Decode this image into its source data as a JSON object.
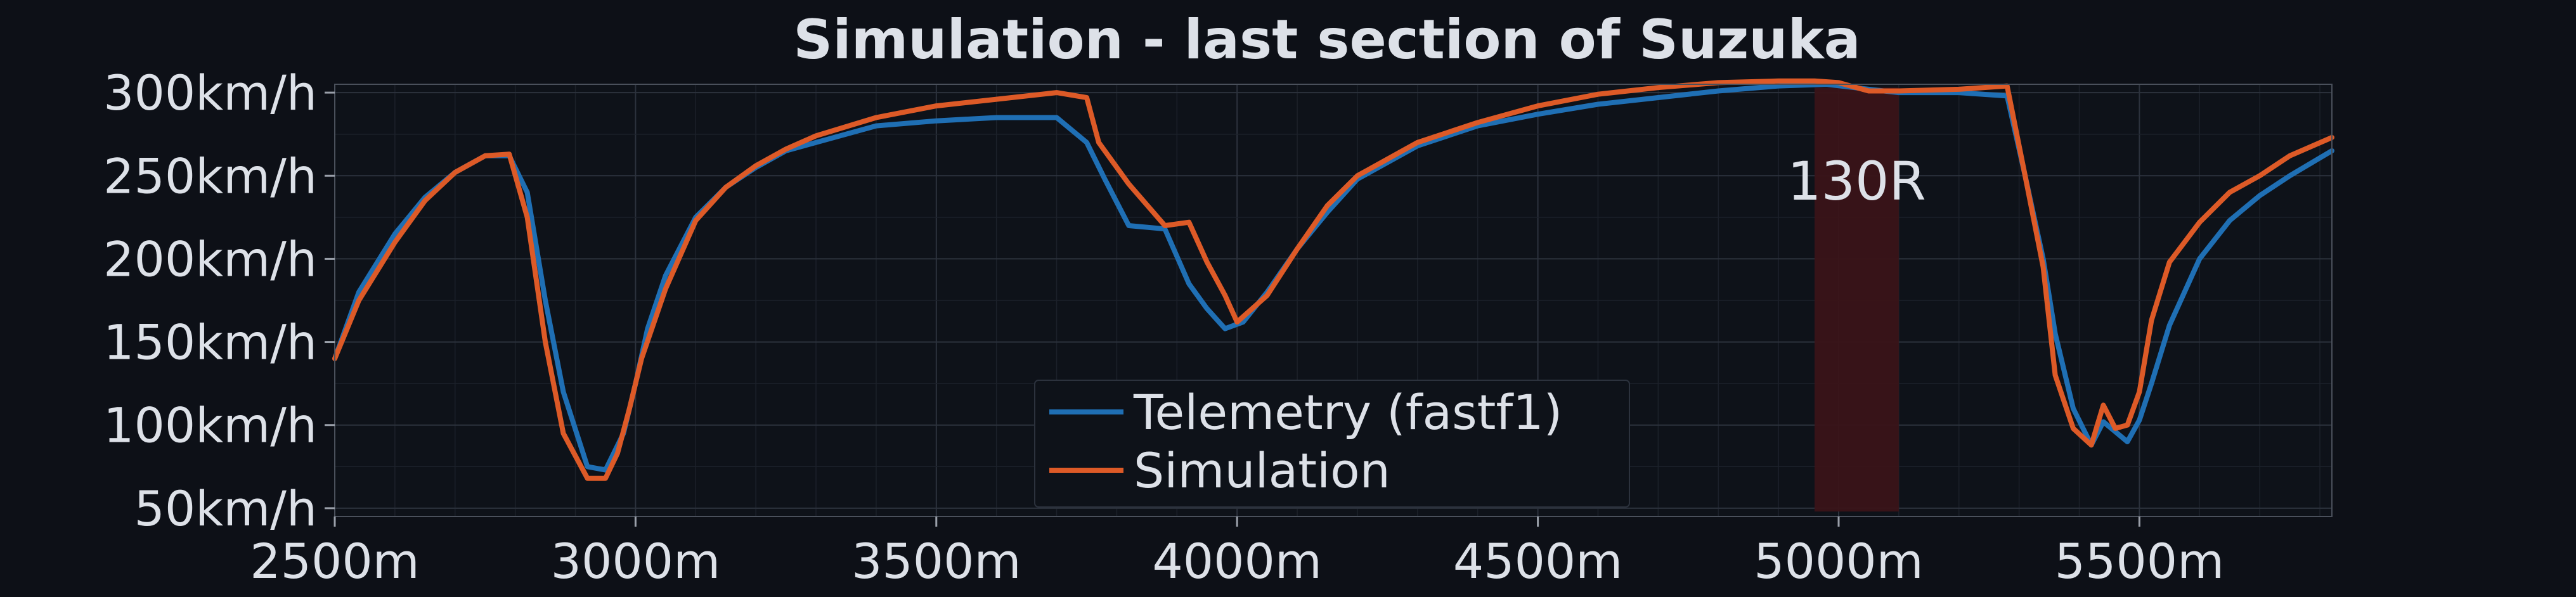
{
  "chart_data": {
    "type": "line",
    "title": "Simulation - last section of Suzuka",
    "xlabel": "",
    "ylabel": "",
    "xlim": [
      2500,
      5820
    ],
    "ylim": [
      45,
      305
    ],
    "x_ticks": [
      2500,
      3000,
      3500,
      4000,
      4500,
      5000,
      5500
    ],
    "x_tick_labels": [
      "2500m",
      "3000m",
      "3500m",
      "4000m",
      "4500m",
      "5000m",
      "5500m"
    ],
    "y_ticks": [
      50,
      100,
      150,
      200,
      250,
      300
    ],
    "y_tick_labels": [
      "50km/h",
      "100km/h",
      "150km/h",
      "200km/h",
      "250km/h",
      "300km/h"
    ],
    "grid": true,
    "legend_position": "lower-center",
    "annotations": [
      {
        "label": "130R",
        "x_start": 4960,
        "x_end": 5100,
        "color": "#3a1418"
      }
    ],
    "series": [
      {
        "name": "Telemetry (fastf1)",
        "color": "#1f6fb4",
        "x": [
          2500,
          2540,
          2600,
          2650,
          2700,
          2750,
          2790,
          2820,
          2850,
          2880,
          2920,
          2950,
          2980,
          3000,
          3020,
          3050,
          3100,
          3150,
          3200,
          3250,
          3300,
          3400,
          3500,
          3600,
          3700,
          3750,
          3780,
          3820,
          3880,
          3920,
          3950,
          3980,
          4010,
          4050,
          4100,
          4150,
          4200,
          4300,
          4400,
          4500,
          4600,
          4700,
          4800,
          4900,
          4980,
          5050,
          5100,
          5200,
          5280,
          5310,
          5340,
          5360,
          5390,
          5420,
          5440,
          5460,
          5480,
          5500,
          5520,
          5550,
          5600,
          5650,
          5700,
          5750,
          5820
        ],
        "y": [
          140,
          180,
          215,
          237,
          252,
          262,
          262,
          240,
          175,
          120,
          75,
          73,
          95,
          125,
          158,
          190,
          225,
          243,
          255,
          265,
          270,
          280,
          283,
          285,
          285,
          270,
          248,
          220,
          218,
          185,
          170,
          158,
          162,
          180,
          206,
          228,
          248,
          268,
          280,
          287,
          293,
          297,
          301,
          304,
          305,
          302,
          300,
          300,
          298,
          250,
          200,
          155,
          110,
          88,
          102,
          96,
          90,
          103,
          125,
          160,
          200,
          223,
          238,
          250,
          265
        ]
      },
      {
        "name": "Simulation",
        "color": "#dd5a27",
        "x": [
          2500,
          2540,
          2600,
          2650,
          2700,
          2750,
          2790,
          2820,
          2850,
          2880,
          2920,
          2950,
          2970,
          2990,
          3010,
          3050,
          3100,
          3150,
          3200,
          3250,
          3300,
          3400,
          3500,
          3600,
          3700,
          3750,
          3770,
          3820,
          3880,
          3920,
          3950,
          3980,
          4000,
          4050,
          4100,
          4150,
          4200,
          4300,
          4400,
          4500,
          4600,
          4700,
          4800,
          4900,
          4960,
          5000,
          5050,
          5100,
          5200,
          5280,
          5310,
          5340,
          5360,
          5390,
          5420,
          5440,
          5460,
          5480,
          5500,
          5520,
          5550,
          5600,
          5650,
          5700,
          5750,
          5820
        ],
        "y": [
          140,
          175,
          210,
          235,
          252,
          262,
          263,
          225,
          150,
          95,
          68,
          68,
          83,
          110,
          140,
          182,
          223,
          243,
          256,
          266,
          274,
          285,
          292,
          296,
          300,
          297,
          270,
          245,
          220,
          222,
          198,
          178,
          162,
          178,
          206,
          232,
          250,
          270,
          282,
          292,
          299,
          303,
          306,
          307,
          307,
          306,
          301,
          301,
          302,
          304,
          250,
          195,
          130,
          98,
          88,
          112,
          98,
          100,
          120,
          163,
          198,
          222,
          240,
          250,
          262,
          273
        ]
      }
    ]
  }
}
